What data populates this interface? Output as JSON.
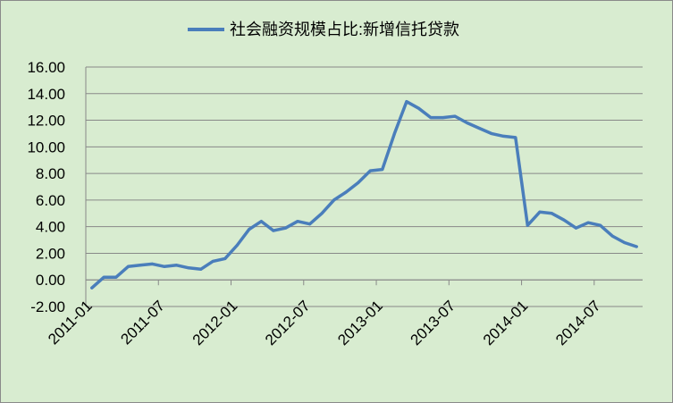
{
  "chart_data": {
    "type": "line",
    "title": "",
    "xlabel": "",
    "ylabel": "",
    "legend_position": "top-center",
    "grid": true,
    "ylim": [
      -2,
      16
    ],
    "y_ticks": [
      "-2.00",
      "0.00",
      "2.00",
      "4.00",
      "6.00",
      "8.00",
      "10.00",
      "12.00",
      "14.00",
      "16.00"
    ],
    "x_tick_labels": [
      "2011-01",
      "2011-07",
      "2012-01",
      "2012-07",
      "2013-01",
      "2013-07",
      "2014-01",
      "2014-07"
    ],
    "colors": {
      "background": "#d8ecd0",
      "line": "#4a7ebb",
      "grid": "#888888"
    },
    "categories": [
      "2011-01",
      "2011-02",
      "2011-03",
      "2011-04",
      "2011-05",
      "2011-06",
      "2011-07",
      "2011-08",
      "2011-09",
      "2011-10",
      "2011-11",
      "2011-12",
      "2012-01",
      "2012-02",
      "2012-03",
      "2012-04",
      "2012-05",
      "2012-06",
      "2012-07",
      "2012-08",
      "2012-09",
      "2012-10",
      "2012-11",
      "2012-12",
      "2013-01",
      "2013-02",
      "2013-03",
      "2013-04",
      "2013-05",
      "2013-06",
      "2013-07",
      "2013-08",
      "2013-09",
      "2013-10",
      "2013-11",
      "2013-12",
      "2014-01",
      "2014-02",
      "2014-03",
      "2014-04",
      "2014-05",
      "2014-06",
      "2014-07",
      "2014-08",
      "2014-09",
      "2014-10"
    ],
    "series": [
      {
        "name": "社会融资规模占比:新增信托贷款",
        "values": [
          -0.6,
          0.2,
          0.2,
          1.0,
          1.1,
          1.2,
          1.0,
          1.1,
          0.9,
          0.8,
          1.4,
          1.6,
          2.6,
          3.8,
          4.4,
          3.7,
          3.9,
          4.4,
          4.2,
          5.0,
          6.0,
          6.6,
          7.3,
          8.2,
          8.3,
          11.0,
          13.4,
          12.9,
          12.2,
          12.2,
          12.3,
          11.8,
          11.4,
          11.0,
          10.8,
          10.7,
          4.1,
          5.1,
          5.0,
          4.5,
          3.9,
          4.3,
          4.1,
          3.3,
          2.8,
          2.5
        ]
      }
    ]
  }
}
